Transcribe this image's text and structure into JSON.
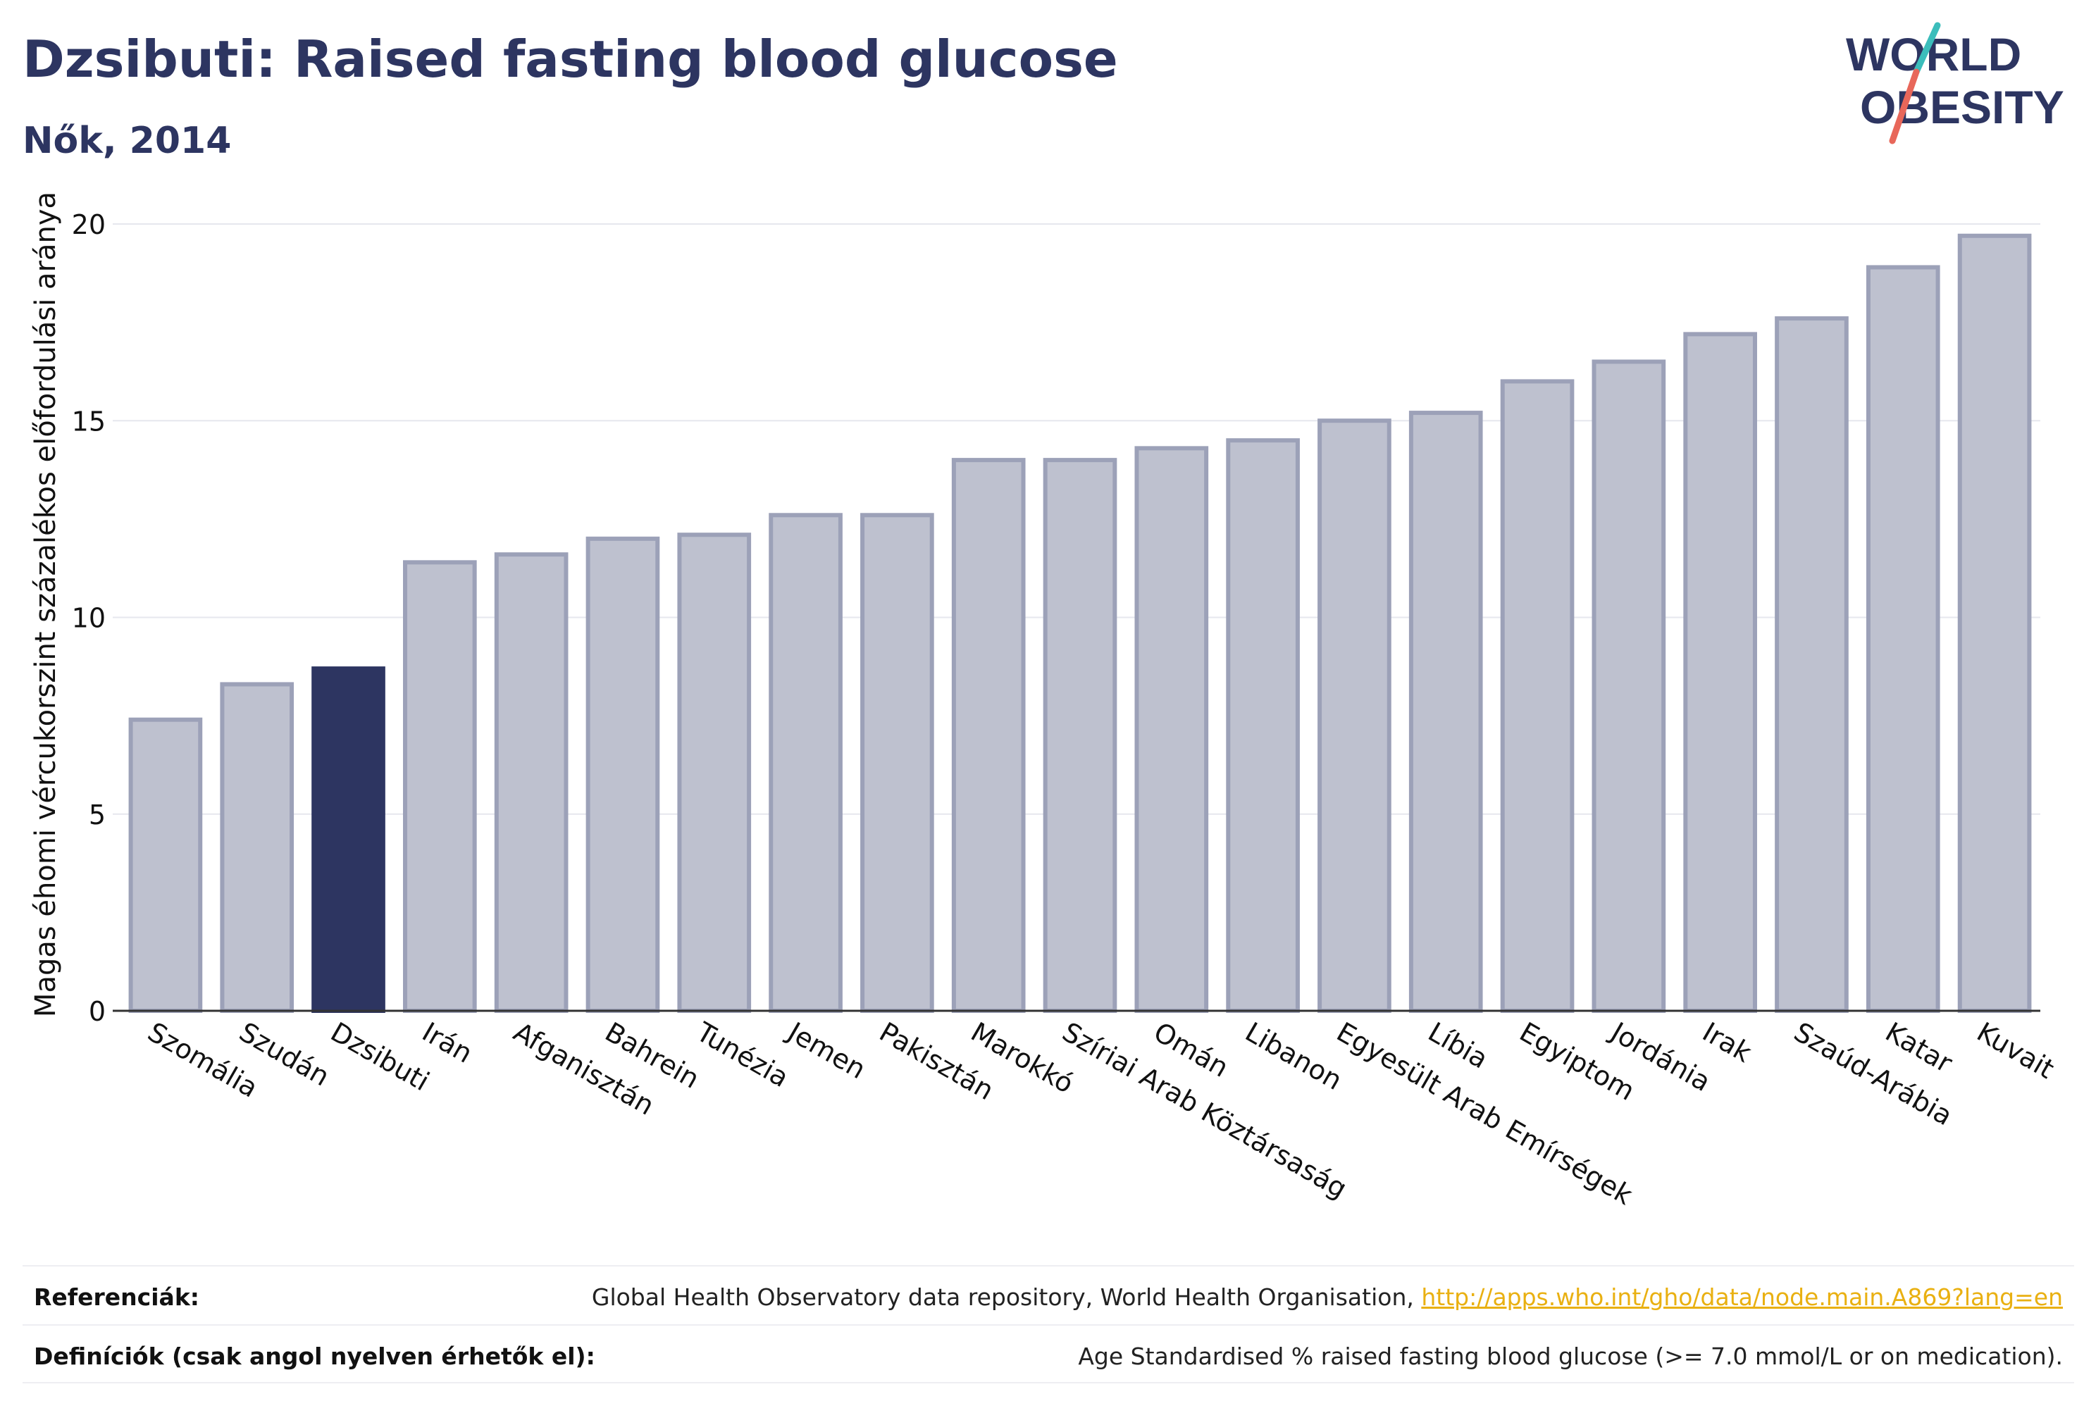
{
  "header": {
    "title": "Dzsibuti: Raised fasting blood glucose",
    "subtitle": "Nők, 2014"
  },
  "logo": {
    "line1": "WORLD",
    "line2": "OBESITY"
  },
  "colors": {
    "highlight": "#2d3561",
    "bar": "#bec1cf",
    "bar_stroke": "#9ca1b8",
    "accent_teal": "#3bbdbb",
    "accent_coral": "#e8675a"
  },
  "chart_data": {
    "type": "bar",
    "ylabel": "Magas éhomi vércukorszint százalékos előfordulási aránya",
    "xlabel": "",
    "ylim": [
      0,
      20
    ],
    "yticks": [
      0,
      5,
      10,
      15,
      20
    ],
    "grid": true,
    "highlight": "Dzsibuti",
    "categories": [
      "Szomália",
      "Szudán",
      "Dzsibuti",
      "Irán",
      "Afganisztán",
      "Bahrein",
      "Tunézia",
      "Jemen",
      "Pakisztán",
      "Marokkó",
      "Szíriai Arab Köztársaság",
      "Omán",
      "Libanon",
      "Egyesült Arab Emírségek",
      "Líbia",
      "Egyiptom",
      "Jordánia",
      "Irak",
      "Szaúd-Arábia",
      "Katar",
      "Kuvait"
    ],
    "values": [
      7.4,
      8.3,
      8.7,
      11.4,
      11.6,
      12.0,
      12.1,
      12.6,
      12.6,
      14.0,
      14.0,
      14.3,
      14.5,
      15.0,
      15.2,
      16.0,
      16.5,
      17.2,
      17.6,
      18.9,
      19.7
    ]
  },
  "footer": {
    "references_label": "Referenciák:",
    "references_text": "Global Health Observatory data repository, World Health Organisation, ",
    "references_link": "http://apps.who.int/gho/data/node.main.A869?lang=en",
    "definitions_label": "Definíciók (csak angol nyelven érhetők el):",
    "definitions_text": "Age Standardised % raised fasting blood glucose (>= 7.0 mmol/L or on medication)."
  }
}
